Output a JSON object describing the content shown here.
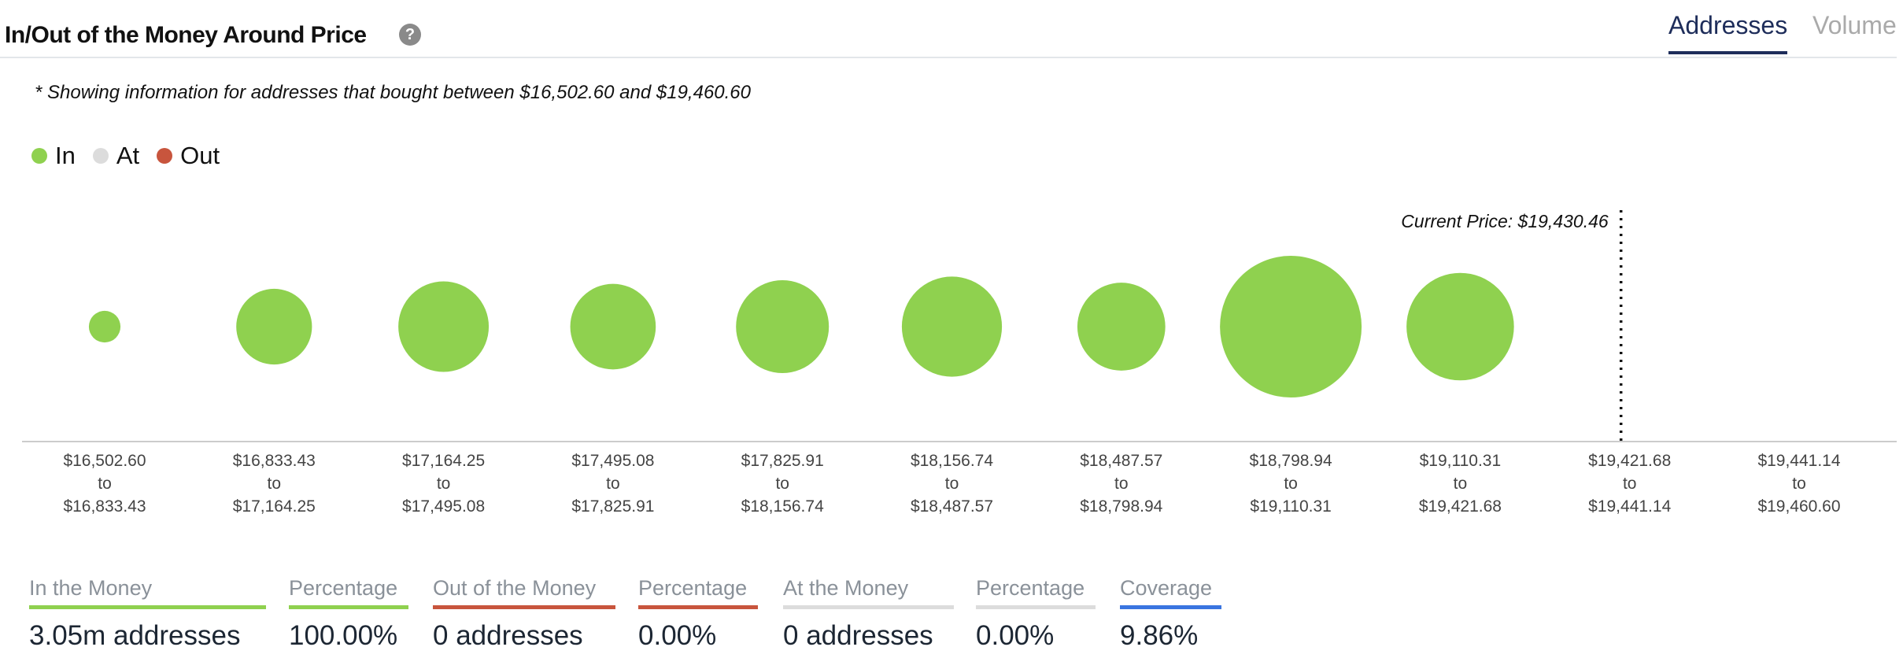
{
  "header": {
    "title": "In/Out of the Money Around Price",
    "help_icon": "?",
    "tabs": [
      {
        "label": "Addresses",
        "active": true
      },
      {
        "label": "Volume",
        "active": false
      }
    ]
  },
  "note": "* Showing information for addresses that bought between $16,502.60 and $19,460.60",
  "legend": [
    {
      "label": "In",
      "color": "#8fd14f"
    },
    {
      "label": "At",
      "color": "#dcdcdc"
    },
    {
      "label": "Out",
      "color": "#c8553d"
    }
  ],
  "chart_data": {
    "type": "scatter",
    "title": "In/Out of the Money Around Price",
    "current_price_label": "Current Price: $19,430.46",
    "current_price": 19430.46,
    "buckets": [
      {
        "from": "$16,502.60",
        "to": "$16,833.43",
        "status": "in",
        "addresses_est": 38000
      },
      {
        "from": "$16,833.43",
        "to": "$17,164.25",
        "status": "in",
        "addresses_est": 218000
      },
      {
        "from": "$17,164.25",
        "to": "$17,495.08",
        "status": "in",
        "addresses_est": 311000
      },
      {
        "from": "$17,495.08",
        "to": "$17,825.91",
        "status": "in",
        "addresses_est": 278000
      },
      {
        "from": "$17,825.91",
        "to": "$18,156.74",
        "status": "in",
        "addresses_est": 328000
      },
      {
        "from": "$18,156.74",
        "to": "$18,487.57",
        "status": "in",
        "addresses_est": 381000
      },
      {
        "from": "$18,487.57",
        "to": "$18,798.94",
        "status": "in",
        "addresses_est": 294000
      },
      {
        "from": "$18,798.94",
        "to": "$19,110.31",
        "status": "in",
        "addresses_est": 763000
      },
      {
        "from": "$19,110.31",
        "to": "$19,421.68",
        "status": "in",
        "addresses_est": 439000
      },
      {
        "from": "$19,421.68",
        "to": "$19,441.14",
        "status": "none",
        "addresses_est": 0
      },
      {
        "from": "$19,441.14",
        "to": "$19,460.60",
        "status": "none",
        "addresses_est": 0
      }
    ],
    "to_word": "to",
    "current_price_bucket_index": 9.0
  },
  "stats": [
    {
      "label": "In the Money",
      "value": "3.05m addresses",
      "color": "#8fd14f"
    },
    {
      "label": "Percentage",
      "value": "100.00%",
      "color": "#8fd14f"
    },
    {
      "label": "Out of the Money",
      "value": "0 addresses",
      "color": "#c8553d"
    },
    {
      "label": "Percentage",
      "value": "0.00%",
      "color": "#c8553d"
    },
    {
      "label": "At the Money",
      "value": "0 addresses",
      "color": "#dcdcdc"
    },
    {
      "label": "Percentage",
      "value": "0.00%",
      "color": "#dcdcdc"
    },
    {
      "label": "Coverage",
      "value": "9.86%",
      "color": "#3a75e0"
    }
  ]
}
